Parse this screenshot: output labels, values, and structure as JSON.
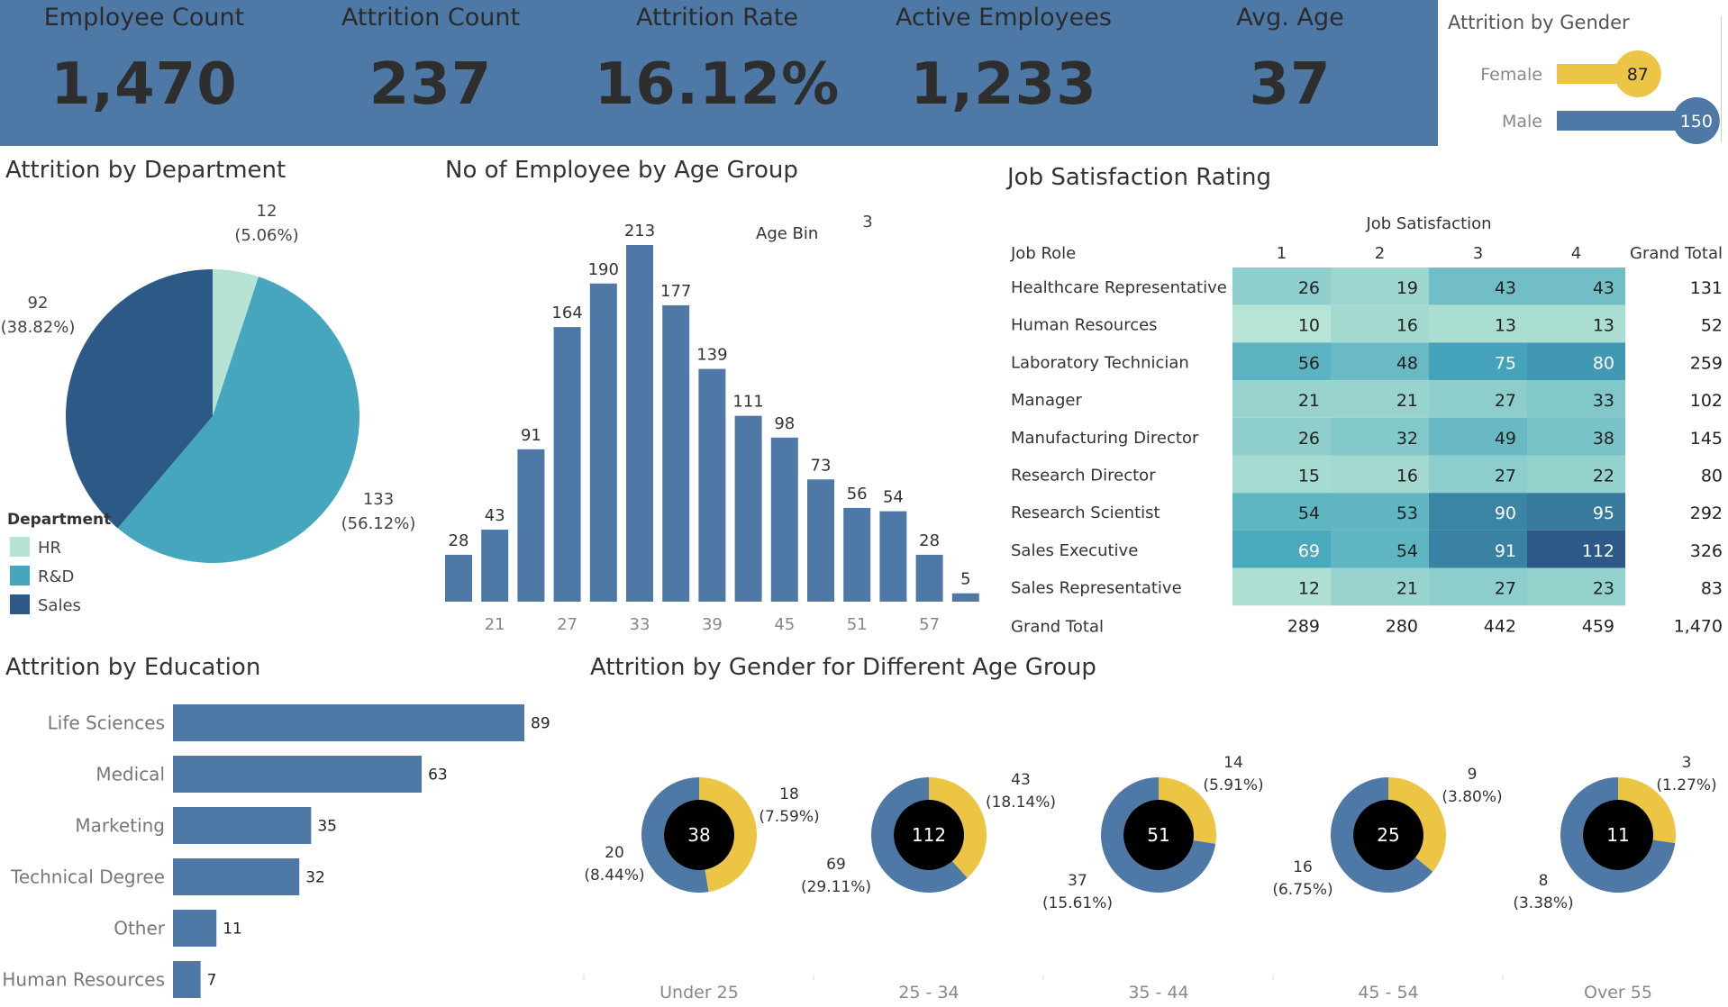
{
  "kpis": [
    {
      "label": "Employee Count",
      "value": "1,470"
    },
    {
      "label": "Attrition Count",
      "value": "237"
    },
    {
      "label": "Attrition Rate",
      "value": "16.12%"
    },
    {
      "label": "Active Employees",
      "value": "1,233"
    },
    {
      "label": "Avg. Age",
      "value": "37"
    }
  ],
  "colors": {
    "kpi_band": "#4e79a7",
    "bar": "#4e79a7",
    "female": "#ebc543",
    "hr": "#b7e3d4",
    "rd": "#45a6bd",
    "sales": "#2c5985",
    "donut_hole": "#000000"
  },
  "titles": {
    "gender": "Attrition by Gender",
    "department": "Attrition by Department",
    "age_group": "No of Employee by Age Group",
    "job_sat": "Job Satisfaction Rating",
    "education": "Attrition by Education",
    "gender_age": "Attrition by Gender for Different Age Group"
  },
  "chart_data": [
    {
      "id": "gender",
      "type": "bar",
      "categories": [
        "Female",
        "Male"
      ],
      "values": [
        87,
        150
      ],
      "xlim": [
        0,
        155
      ]
    },
    {
      "id": "department",
      "type": "pie",
      "legend_title": "Department",
      "legend_position": "bottom-left",
      "slices": [
        {
          "name": "HR",
          "value": 12,
          "label": "12",
          "pct": "(5.06%)"
        },
        {
          "name": "R&D",
          "value": 133,
          "label": "133",
          "pct": "(56.12%)"
        },
        {
          "name": "Sales",
          "value": 92,
          "label": "92",
          "pct": "(38.82%)"
        }
      ]
    },
    {
      "id": "age_group",
      "type": "bar",
      "legend_title": "Age Bin",
      "legend_value": "3",
      "x": [
        18,
        21,
        24,
        27,
        30,
        33,
        36,
        39,
        42,
        45,
        48,
        51,
        54,
        57,
        60
      ],
      "values": [
        28,
        43,
        91,
        164,
        190,
        213,
        177,
        139,
        111,
        98,
        73,
        56,
        54,
        28,
        5
      ],
      "tick_labels": [
        "21",
        "27",
        "33",
        "39",
        "45",
        "51",
        "57"
      ],
      "ylim": [
        0,
        213
      ]
    },
    {
      "id": "job_sat",
      "type": "heatmap",
      "column_group": "Job Satisfaction",
      "row_header": "Job Role",
      "columns": [
        "1",
        "2",
        "3",
        "4"
      ],
      "total_label": "Grand Total",
      "rows": [
        {
          "role": "Healthcare Representative",
          "values": [
            26,
            19,
            43,
            43
          ],
          "total": "131"
        },
        {
          "role": "Human Resources",
          "values": [
            10,
            16,
            13,
            13
          ],
          "total": "52"
        },
        {
          "role": "Laboratory Technician",
          "values": [
            56,
            48,
            75,
            80
          ],
          "total": "259"
        },
        {
          "role": "Manager",
          "values": [
            21,
            21,
            27,
            33
          ],
          "total": "102"
        },
        {
          "role": "Manufacturing Director",
          "values": [
            26,
            32,
            49,
            38
          ],
          "total": "145"
        },
        {
          "role": "Research Director",
          "values": [
            15,
            16,
            27,
            22
          ],
          "total": "80"
        },
        {
          "role": "Research Scientist",
          "values": [
            54,
            53,
            90,
            95
          ],
          "total": "292"
        },
        {
          "role": "Sales Executive",
          "values": [
            69,
            54,
            91,
            112
          ],
          "total": "326"
        },
        {
          "role": "Sales Representative",
          "values": [
            12,
            21,
            27,
            23
          ],
          "total": "83"
        }
      ],
      "column_totals": [
        "289",
        "280",
        "442",
        "459"
      ],
      "grand_total": "1,470",
      "value_range": [
        10,
        112
      ]
    },
    {
      "id": "education",
      "type": "bar",
      "categories": [
        "Life Sciences",
        "Medical",
        "Marketing",
        "Technical Degree",
        "Other",
        "Human Resources"
      ],
      "values": [
        89,
        63,
        35,
        32,
        11,
        7
      ],
      "xlim": [
        0,
        89
      ]
    },
    {
      "id": "gender_age",
      "type": "pie",
      "groups": [
        {
          "label": "Under 25",
          "total": "38",
          "female": 18,
          "male": 20,
          "female_label": "18",
          "female_pct": "(7.59%)",
          "male_label": "20",
          "male_pct": "(8.44%)"
        },
        {
          "label": "25 - 34",
          "total": "112",
          "female": 43,
          "male": 69,
          "female_label": "43",
          "female_pct": "(18.14%)",
          "male_label": "69",
          "male_pct": "(29.11%)"
        },
        {
          "label": "35 - 44",
          "total": "51",
          "female": 14,
          "male": 37,
          "female_label": "14",
          "female_pct": "(5.91%)",
          "male_label": "37",
          "male_pct": "(15.61%)"
        },
        {
          "label": "45 - 54",
          "total": "25",
          "female": 9,
          "male": 16,
          "female_label": "9",
          "female_pct": "(3.80%)",
          "male_label": "16",
          "male_pct": "(6.75%)"
        },
        {
          "label": "Over 55",
          "total": "11",
          "female": 3,
          "male": 8,
          "female_label": "3",
          "female_pct": "(1.27%)",
          "male_label": "8",
          "male_pct": "(3.38%)"
        }
      ]
    }
  ]
}
